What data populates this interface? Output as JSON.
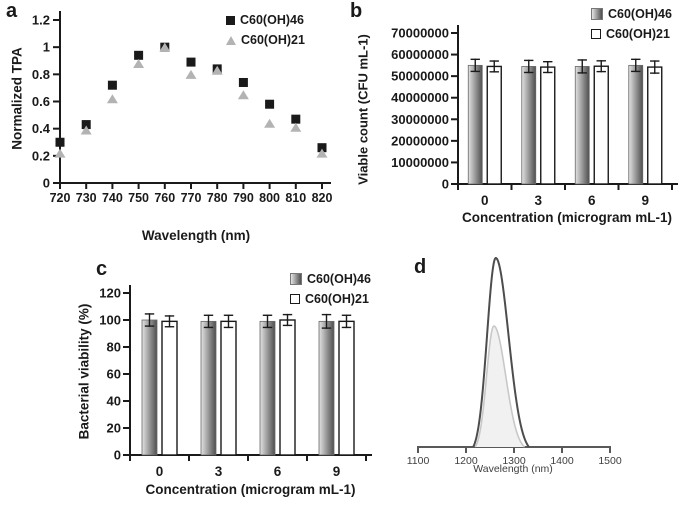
{
  "panel_labels": {
    "a": "a",
    "b": "b",
    "c": "c",
    "d": "d"
  },
  "colors": {
    "axis": "#1a1a1a",
    "series_black": "#1a1a1a",
    "series_gray": "#b3b3b3",
    "bar_gradient_light": "#e3e3e3",
    "bar_gradient_dark": "#4e4e4e",
    "bar_white": "#ffffff",
    "panel_d_axis": "#595959",
    "panel_d_dark_curve": "#4d4d4d",
    "panel_d_light_curve": "#c8c8c8"
  },
  "chart_data": [
    {
      "id": "a",
      "type": "scatter",
      "x": [
        720,
        730,
        740,
        750,
        760,
        770,
        780,
        790,
        800,
        810,
        820
      ],
      "series": [
        {
          "name": "C60(OH)46",
          "marker": "square",
          "color": "#1a1a1a",
          "values": [
            0.3,
            0.43,
            0.72,
            0.94,
            1.0,
            0.89,
            0.84,
            0.74,
            0.58,
            0.47,
            0.26
          ]
        },
        {
          "name": "C60(OH)21",
          "marker": "triangle",
          "color": "#b3b3b3",
          "values": [
            0.22,
            0.39,
            0.62,
            0.88,
            1.0,
            0.8,
            0.83,
            0.65,
            0.44,
            0.41,
            0.22
          ]
        }
      ],
      "xlabel": "Wavelength (nm)",
      "ylabel": "Normalized TPA",
      "ylim": [
        0,
        1.2
      ],
      "yticks": [
        0,
        0.2,
        0.4,
        0.6,
        0.8,
        1,
        1.2
      ],
      "ytick_labels": [
        "0",
        "0.2",
        "0.4",
        "0.6",
        "0.8",
        "1",
        "1.2"
      ],
      "legend_position": "top-right",
      "grid": false
    },
    {
      "id": "b",
      "type": "bar",
      "categories": [
        "0",
        "3",
        "6",
        "9"
      ],
      "series": [
        {
          "name": "C60(OH)46",
          "fill": "gray-gradient",
          "values": [
            55000000,
            54500000,
            54500000,
            55000000
          ],
          "errors": [
            2800000,
            2800000,
            3000000,
            2800000
          ]
        },
        {
          "name": "C60(OH)21",
          "fill": "white",
          "values": [
            54500000,
            54200000,
            54600000,
            54200000
          ],
          "errors": [
            2500000,
            2500000,
            2500000,
            2800000
          ]
        }
      ],
      "xlabel": "Concentration  (microgram mL-1)",
      "ylabel": "Viable count (CFU mL-1)",
      "ylim": [
        0,
        70000000
      ],
      "ytick_labels": [
        "0",
        "10000000",
        "20000000",
        "30000000",
        "40000000",
        "50000000",
        "60000000",
        "70000000"
      ],
      "legend_position": "top-right",
      "grid": false
    },
    {
      "id": "c",
      "type": "bar",
      "categories": [
        "0",
        "3",
        "6",
        "9"
      ],
      "series": [
        {
          "name": "C60(OH)46",
          "fill": "gray-gradient",
          "values": [
            100,
            99,
            99,
            99
          ],
          "errors": [
            4.5,
            4.5,
            4.5,
            5
          ]
        },
        {
          "name": "C60(OH)21",
          "fill": "white",
          "values": [
            99,
            99,
            100,
            99
          ],
          "errors": [
            4,
            4.5,
            4,
            4.5
          ]
        }
      ],
      "xlabel": "Concentration (microgram mL-1)",
      "ylabel": "Bacterial viability (%)",
      "ylim": [
        0,
        120
      ],
      "ytick_labels": [
        "0",
        "20",
        "40",
        "60",
        "80",
        "100",
        "120"
      ],
      "legend_position": "top-right",
      "grid": false
    },
    {
      "id": "d",
      "type": "area",
      "xlabel": "Wavelength (nm)",
      "xlim": [
        1100,
        1500
      ],
      "xtick_labels": [
        "1100",
        "1200",
        "1300",
        "1400",
        "1500"
      ],
      "series": [
        {
          "name": "dark-peak",
          "color": "#4d4d4d",
          "fill": "none",
          "peak_nm": 1262,
          "onset_nm": 1215,
          "end_nm": 1331,
          "peak_height": 1.0
        },
        {
          "name": "light-peak",
          "color": "#c8c8c8",
          "fill": "#f1f1f1",
          "peak_nm": 1258,
          "onset_nm": 1219,
          "end_nm": 1322,
          "peak_height": 0.64
        }
      ],
      "grid": false
    }
  ]
}
